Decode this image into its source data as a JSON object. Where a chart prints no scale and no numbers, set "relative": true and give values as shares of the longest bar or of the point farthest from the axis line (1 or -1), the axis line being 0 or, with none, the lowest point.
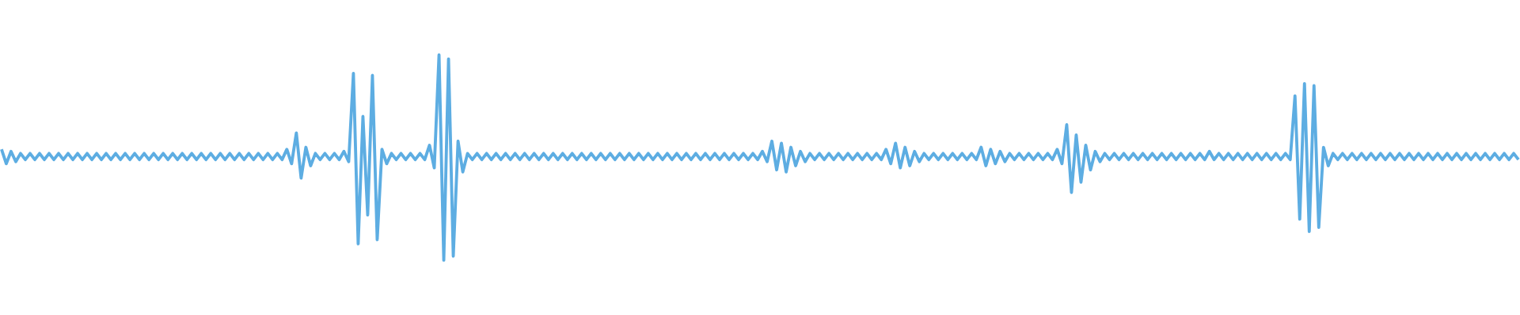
{
  "chart_data": {
    "type": "line",
    "relative": true,
    "marker": "none",
    "categories": [
      null,
      null,
      null,
      null,
      null,
      null,
      null,
      null,
      null,
      null,
      null,
      null,
      null,
      null,
      null,
      null,
      null,
      null,
      null,
      null,
      null,
      null,
      null,
      null,
      null,
      null,
      null,
      null,
      null,
      null,
      null,
      null,
      null,
      null,
      null,
      null,
      null,
      null,
      null,
      null,
      null,
      null,
      null,
      null,
      null,
      null,
      null,
      null,
      null,
      null,
      null,
      null,
      null,
      null,
      null,
      null,
      null,
      null,
      null,
      null,
      null,
      null,
      null,
      null,
      null,
      null,
      null,
      null,
      null,
      null,
      null,
      null,
      null,
      null,
      null,
      null,
      null,
      null,
      null,
      null,
      null,
      null,
      null,
      null,
      null,
      null,
      null,
      null,
      null,
      null,
      null,
      null,
      null,
      null,
      null,
      null,
      null,
      null,
      null,
      null,
      null,
      null,
      null,
      null,
      null,
      null,
      null,
      null,
      null,
      null,
      null,
      null,
      null,
      null,
      null,
      null,
      null,
      null,
      null,
      null,
      null,
      null,
      null,
      null,
      null,
      null,
      null,
      null,
      null,
      null,
      null,
      null,
      null,
      null,
      null,
      null,
      null,
      null,
      null,
      null,
      null,
      null,
      null,
      null,
      null,
      null,
      null,
      null,
      null,
      null,
      null,
      null,
      null,
      null,
      null,
      null,
      null,
      null,
      null,
      null,
      null,
      null,
      null,
      null,
      null,
      null,
      null,
      null,
      null,
      null,
      null,
      null,
      null,
      null,
      null,
      null,
      null,
      null,
      null,
      null,
      null,
      null,
      null,
      null,
      null,
      null,
      null,
      null,
      null,
      null,
      null,
      null,
      null,
      null,
      null,
      null,
      null,
      null,
      null,
      null,
      null,
      null,
      null,
      null,
      null,
      null,
      null,
      null,
      null,
      null,
      null,
      null,
      null,
      null,
      null,
      null,
      null,
      null,
      null,
      null,
      null,
      null,
      null,
      null,
      null,
      null,
      null,
      null,
      null,
      null,
      null,
      null,
      null,
      null,
      null,
      null,
      null,
      null,
      null,
      null,
      null,
      null,
      null,
      null,
      null,
      null,
      null,
      null,
      null,
      null,
      null,
      null,
      null,
      null,
      null,
      null,
      null,
      null,
      null,
      null,
      null,
      null,
      null,
      null,
      null,
      null,
      null,
      null,
      null,
      null,
      null,
      null,
      null,
      null,
      null,
      null,
      null,
      null,
      null,
      null,
      null,
      null,
      null,
      null,
      null,
      null,
      null,
      null,
      null,
      null,
      null,
      null,
      null,
      null,
      null,
      null,
      null,
      null,
      null,
      null,
      null,
      null,
      null,
      null,
      null,
      null,
      null,
      null,
      null,
      null,
      null,
      null,
      null,
      null,
      null,
      null,
      null,
      null,
      null,
      null
    ],
    "series": [
      {
        "color": "#5dade2",
        "values": [
          0.54,
          0.47,
          0.53,
          0.48,
          0.52,
          0.49,
          0.52,
          0.49,
          0.52,
          0.49,
          0.52,
          0.49,
          0.52,
          0.49,
          0.52,
          0.49,
          0.52,
          0.49,
          0.52,
          0.49,
          0.52,
          0.49,
          0.52,
          0.49,
          0.52,
          0.49,
          0.52,
          0.49,
          0.52,
          0.49,
          0.52,
          0.49,
          0.52,
          0.49,
          0.52,
          0.49,
          0.52,
          0.49,
          0.52,
          0.49,
          0.52,
          0.49,
          0.52,
          0.49,
          0.52,
          0.49,
          0.52,
          0.49,
          0.52,
          0.49,
          0.52,
          0.49,
          0.52,
          0.49,
          0.52,
          0.49,
          0.52,
          0.49,
          0.52,
          0.49,
          0.54,
          0.47,
          0.62,
          0.4,
          0.55,
          0.46,
          0.52,
          0.49,
          0.52,
          0.49,
          0.52,
          0.49,
          0.53,
          0.48,
          0.91,
          0.08,
          0.7,
          0.22,
          0.9,
          0.1,
          0.54,
          0.47,
          0.52,
          0.49,
          0.52,
          0.49,
          0.52,
          0.49,
          0.52,
          0.49,
          0.56,
          0.45,
          1.0,
          0.0,
          0.98,
          0.02,
          0.58,
          0.43,
          0.52,
          0.49,
          0.52,
          0.49,
          0.52,
          0.49,
          0.52,
          0.49,
          0.52,
          0.49,
          0.52,
          0.49,
          0.52,
          0.49,
          0.52,
          0.49,
          0.52,
          0.49,
          0.52,
          0.49,
          0.52,
          0.49,
          0.52,
          0.49,
          0.52,
          0.49,
          0.52,
          0.49,
          0.52,
          0.49,
          0.52,
          0.49,
          0.52,
          0.49,
          0.52,
          0.49,
          0.52,
          0.49,
          0.52,
          0.49,
          0.52,
          0.49,
          0.52,
          0.49,
          0.52,
          0.49,
          0.52,
          0.49,
          0.52,
          0.49,
          0.52,
          0.49,
          0.52,
          0.49,
          0.52,
          0.49,
          0.52,
          0.49,
          0.52,
          0.49,
          0.52,
          0.49,
          0.53,
          0.48,
          0.58,
          0.44,
          0.57,
          0.43,
          0.55,
          0.46,
          0.53,
          0.48,
          0.52,
          0.49,
          0.52,
          0.49,
          0.52,
          0.49,
          0.52,
          0.49,
          0.52,
          0.49,
          0.52,
          0.49,
          0.52,
          0.49,
          0.52,
          0.49,
          0.54,
          0.47,
          0.57,
          0.45,
          0.55,
          0.46,
          0.53,
          0.48,
          0.52,
          0.49,
          0.52,
          0.49,
          0.52,
          0.49,
          0.52,
          0.49,
          0.52,
          0.49,
          0.52,
          0.49,
          0.55,
          0.46,
          0.54,
          0.47,
          0.53,
          0.48,
          0.52,
          0.49,
          0.52,
          0.49,
          0.52,
          0.49,
          0.52,
          0.49,
          0.52,
          0.49,
          0.54,
          0.47,
          0.66,
          0.33,
          0.61,
          0.38,
          0.56,
          0.44,
          0.53,
          0.48,
          0.52,
          0.49,
          0.52,
          0.49,
          0.52,
          0.49,
          0.52,
          0.49,
          0.52,
          0.49,
          0.52,
          0.49,
          0.52,
          0.49,
          0.52,
          0.49,
          0.52,
          0.49,
          0.52,
          0.49,
          0.52,
          0.49,
          0.53,
          0.49,
          0.52,
          0.49,
          0.52,
          0.49,
          0.52,
          0.49,
          0.52,
          0.49,
          0.52,
          0.49,
          0.52,
          0.49,
          0.52,
          0.49,
          0.52,
          0.49,
          0.8,
          0.2,
          0.86,
          0.14,
          0.85,
          0.16,
          0.55,
          0.46,
          0.52,
          0.49,
          0.52,
          0.49,
          0.52,
          0.49,
          0.52,
          0.49,
          0.52,
          0.49,
          0.52,
          0.49,
          0.52,
          0.49,
          0.52,
          0.49,
          0.52,
          0.49,
          0.52,
          0.49,
          0.52,
          0.49,
          0.52,
          0.49,
          0.52,
          0.49,
          0.52,
          0.49,
          0.52,
          0.49,
          0.52,
          0.49,
          0.52,
          0.49,
          0.52,
          0.49,
          0.52,
          0.49,
          0.52,
          0.49
        ]
      }
    ]
  }
}
